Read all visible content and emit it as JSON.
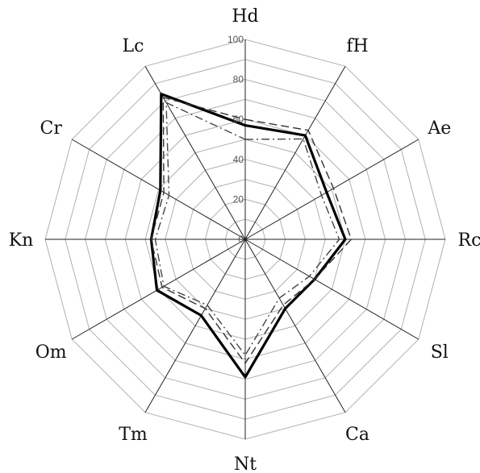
{
  "chart_data": {
    "type": "radar",
    "axes": [
      "Hd",
      "fH",
      "Ae",
      "Rc",
      "Sl",
      "Ca",
      "Nt",
      "Tm",
      "Om",
      "Kn",
      "Cr",
      "Lc"
    ],
    "rlim": [
      0,
      100
    ],
    "ticks": [
      "0",
      "20",
      "40",
      "60",
      "80",
      "100"
    ],
    "tick_values": [
      0,
      20,
      40,
      60,
      80,
      100
    ],
    "grid": true,
    "series": [
      {
        "style": "solid-thick",
        "color": "#000000",
        "values": [
          57,
          60,
          47,
          50,
          40,
          40,
          69,
          44,
          51,
          47,
          49,
          84
        ]
      },
      {
        "style": "dashed",
        "color": "#333333",
        "values": [
          60,
          63,
          51,
          53,
          40,
          38,
          62,
          40,
          48,
          47,
          47,
          82
        ]
      },
      {
        "style": "dash-dot",
        "color": "#444444",
        "values": [
          50,
          58,
          44,
          47,
          37,
          34,
          58,
          38,
          47,
          45,
          44,
          79
        ]
      }
    ]
  }
}
